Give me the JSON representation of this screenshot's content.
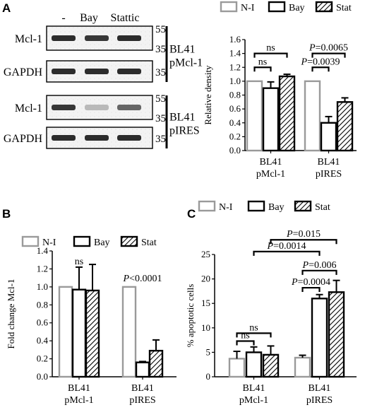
{
  "panel_letters": [
    "A",
    "B",
    "C"
  ],
  "colors": {
    "ni": "#9a9a9a",
    "bay": "#000000",
    "stat": "#000000"
  },
  "blot": {
    "lane_labels": [
      "-",
      "Bay",
      "Stattic"
    ],
    "groups": [
      {
        "name_line1": "BL41",
        "name_line2": "pMcl-1",
        "rows": [
          {
            "label": "Mcl-1",
            "markers": [
              "55",
              "35"
            ],
            "intensity": [
              0.9,
              0.85,
              0.9
            ]
          },
          {
            "label": "GAPDH",
            "markers": [
              "35"
            ],
            "intensity": [
              0.9,
              0.9,
              0.9
            ]
          }
        ]
      },
      {
        "name_line1": "BL41",
        "name_line2": "pIRES",
        "rows": [
          {
            "label": "Mcl-1",
            "markers": [
              "55",
              "35"
            ],
            "intensity": [
              0.85,
              0.3,
              0.65
            ]
          },
          {
            "label": "GAPDH",
            "markers": [
              "35"
            ],
            "intensity": [
              0.9,
              0.9,
              0.9
            ]
          }
        ]
      }
    ]
  },
  "chart_data": [
    {
      "panel": "A",
      "type": "bar",
      "categories": [
        [
          "BL41",
          "pMcl-1"
        ],
        [
          "BL41",
          "pIRES"
        ]
      ],
      "series": [
        {
          "name": "N-I",
          "values": [
            1.0,
            1.0
          ],
          "errors": [
            0,
            0
          ],
          "style": "gray"
        },
        {
          "name": "Bay",
          "values": [
            0.9,
            0.4
          ],
          "errors": [
            0.09,
            0.09
          ],
          "style": "black"
        },
        {
          "name": "Stat",
          "values": [
            1.07,
            0.7
          ],
          "errors": [
            0.03,
            0.06
          ],
          "style": "hatch"
        }
      ],
      "xlabel": "",
      "ylabel": "Relative density",
      "ylim": [
        0,
        1.6
      ],
      "yticks": [
        0,
        0.2,
        0.4,
        0.6,
        0.8,
        1.0,
        1.2,
        1.4,
        1.6
      ],
      "ytick_labels": [
        "0.0",
        "0.2",
        "0.4",
        "0.6",
        "0.8",
        "1.0",
        "1.2",
        "1.4",
        "1.6"
      ],
      "legend": "top",
      "annotations": [
        {
          "text": "ns",
          "italic_p": false,
          "value": "",
          "from": [
            0,
            0
          ],
          "to": [
            0,
            1
          ],
          "y": 1.2
        },
        {
          "text": "ns",
          "italic_p": false,
          "value": "",
          "from": [
            0,
            0
          ],
          "to": [
            0,
            2
          ],
          "y": 1.4
        },
        {
          "text": "P",
          "italic_p": true,
          "value": "=0.0039",
          "from": [
            1,
            0
          ],
          "to": [
            1,
            1
          ],
          "y": 1.2
        },
        {
          "text": "P",
          "italic_p": true,
          "value": "=0.0065",
          "from": [
            1,
            0
          ],
          "to": [
            1,
            2
          ],
          "y": 1.4
        }
      ]
    },
    {
      "panel": "B",
      "type": "bar",
      "categories": [
        [
          "BL41",
          "pMcl-1"
        ],
        [
          "BL41",
          "pIRES"
        ]
      ],
      "series": [
        {
          "name": "N-I",
          "values": [
            1.0,
            1.0
          ],
          "errors": [
            0,
            0
          ],
          "style": "gray"
        },
        {
          "name": "Bay",
          "values": [
            0.97,
            0.16
          ],
          "errors": [
            0.25,
            0.01
          ],
          "style": "black"
        },
        {
          "name": "Stat",
          "values": [
            0.96,
            0.29
          ],
          "errors": [
            0.29,
            0.12
          ],
          "style": "hatch"
        }
      ],
      "xlabel": "",
      "ylabel": "Fold change Mcl-1",
      "ylim": [
        0,
        1.4
      ],
      "yticks": [
        0,
        0.2,
        0.4,
        0.6,
        0.8,
        1.0,
        1.2,
        1.4
      ],
      "ytick_labels": [
        "0.0",
        "0.2",
        "0.4",
        "0.6",
        "0.8",
        "1.0",
        "1.2",
        "1.4"
      ],
      "legend": "top",
      "annotations": [
        {
          "text": "ns",
          "italic_p": false,
          "value": "",
          "at": 0,
          "y": 1.25
        },
        {
          "text": "P",
          "italic_p": true,
          "value": "<0.0001",
          "at": 1,
          "y": 1.06
        }
      ]
    },
    {
      "panel": "C",
      "type": "bar",
      "categories": [
        [
          "BL41",
          "pMcl-1"
        ],
        [
          "BL41",
          "pIRES"
        ]
      ],
      "series": [
        {
          "name": "N-I",
          "values": [
            3.7,
            3.9
          ],
          "errors": [
            1.5,
            0.5
          ],
          "style": "gray"
        },
        {
          "name": "Bay",
          "values": [
            5.0,
            16.0
          ],
          "errors": [
            1.1,
            0.8
          ],
          "style": "black"
        },
        {
          "name": "Stat",
          "values": [
            4.5,
            17.3
          ],
          "errors": [
            1.8,
            2.4
          ],
          "style": "hatch"
        }
      ],
      "xlabel": "",
      "ylabel": "% apoptotic cells",
      "ylim": [
        0,
        25
      ],
      "yticks": [
        0,
        5,
        10,
        15,
        20,
        25
      ],
      "ytick_labels": [
        "0",
        "5",
        "10",
        "15",
        "20",
        "25"
      ],
      "legend": "top",
      "annotations": [
        {
          "text": "ns",
          "italic_p": false,
          "value": "",
          "from": [
            0,
            0
          ],
          "to": [
            0,
            1
          ],
          "y": 7.3
        },
        {
          "text": "ns",
          "italic_p": false,
          "value": "",
          "from": [
            0,
            0
          ],
          "to": [
            0,
            2
          ],
          "y": 8.9
        },
        {
          "text": "P",
          "italic_p": true,
          "value": "=0.0004",
          "from": [
            1,
            0
          ],
          "to": [
            1,
            1
          ],
          "y": 18.2
        },
        {
          "text": "P",
          "italic_p": true,
          "value": "=0.006",
          "from": [
            1,
            0
          ],
          "to": [
            1,
            2
          ],
          "y": 21.7
        },
        {
          "text": "P",
          "italic_p": true,
          "value": "=0.0014",
          "from": [
            0,
            1
          ],
          "to": [
            1,
            1
          ],
          "y": 25.6
        },
        {
          "text": "P",
          "italic_p": true,
          "value": "=0.015",
          "from": [
            0,
            2
          ],
          "to": [
            1,
            2
          ],
          "y": 28.0
        }
      ]
    }
  ]
}
